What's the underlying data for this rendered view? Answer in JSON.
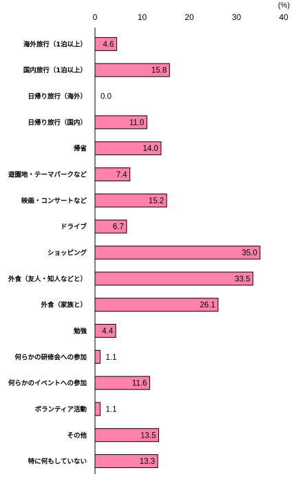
{
  "chart_data": {
    "type": "bar",
    "orientation": "horizontal",
    "unit": "(%)",
    "xlim": [
      0,
      40
    ],
    "ticks": [
      "0",
      "10",
      "20",
      "30",
      "40"
    ],
    "tick_values": [
      0,
      10,
      20,
      30,
      40
    ],
    "grid": false,
    "bar_color": "#ff82aa",
    "categories": [
      "海外旅行（1泊以上）",
      "国内旅行（1泊以上）",
      "日帰り旅行（海外）",
      "日帰り旅行（国内）",
      "帰省",
      "遊園地・テーマパークなど",
      "映画・コンサートなど",
      "ドライブ",
      "ショッピング",
      "外食（友人・知人などと）",
      "外食（家族と）",
      "勉強",
      "何らかの研修会への参加",
      "何らかのイベントへの参加",
      "ボランティア活動",
      "その他",
      "特に何もしていない"
    ],
    "values": [
      4.6,
      15.8,
      0.0,
      11.0,
      14.0,
      7.4,
      15.2,
      6.7,
      35.0,
      33.5,
      26.1,
      4.4,
      1.1,
      11.6,
      1.1,
      13.5,
      13.3
    ],
    "value_labels": [
      "4.6",
      "15.8",
      "0.0",
      "11.0",
      "14.0",
      "7.4",
      "15.2",
      "6.7",
      "35.0",
      "33.5",
      "26.1",
      "4.4",
      "1.1",
      "11.6",
      "1.1",
      "13.5",
      "13.3"
    ]
  }
}
